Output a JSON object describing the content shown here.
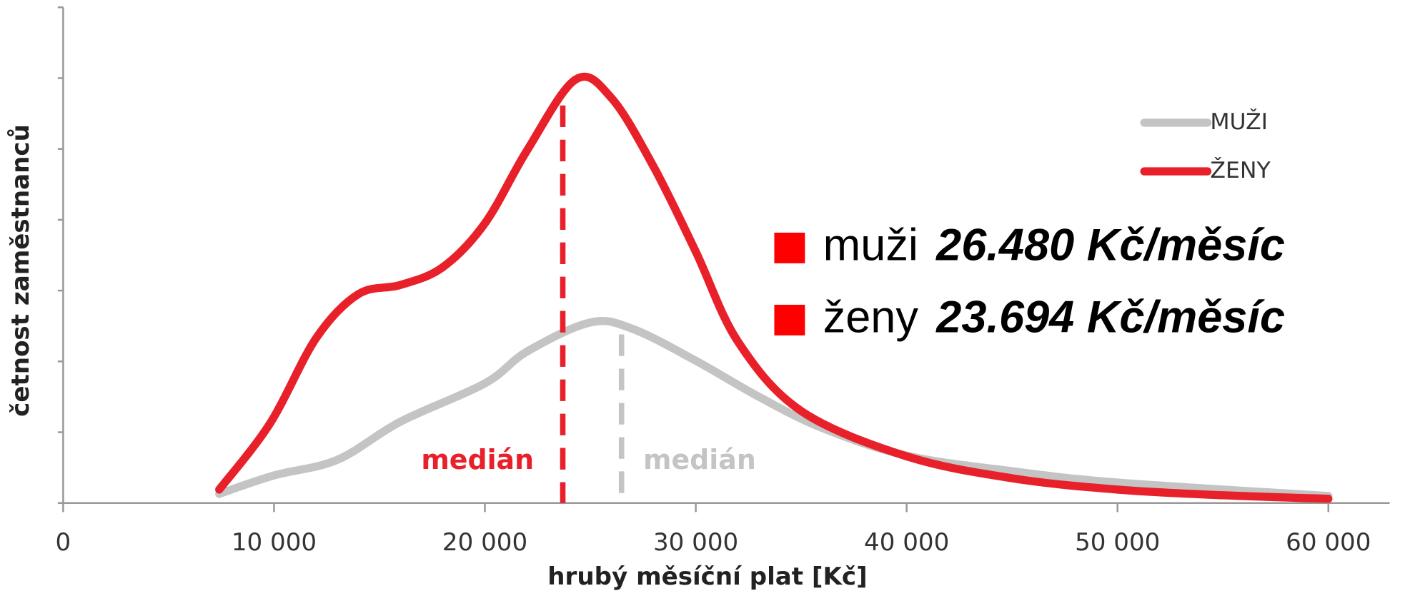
{
  "chart_data": {
    "type": "line",
    "x_label": "hrubý měsíční plat [Kč]",
    "y_label": "četnost zaměstnanců",
    "xlim": [
      0,
      60000
    ],
    "ylim": [
      0,
      7
    ],
    "xticks": [
      0,
      {
        "value": 10000,
        "label": "10 000"
      },
      {
        "value": 20000,
        "label": "20 000"
      },
      {
        "value": 30000,
        "label": "30 000"
      },
      {
        "value": 40000,
        "label": "40 000"
      },
      {
        "value": 50000,
        "label": "50 000"
      },
      {
        "value": 60000,
        "label": "60 000"
      }
    ],
    "yticks": [
      0,
      1,
      2,
      3,
      4,
      5,
      6,
      7
    ],
    "legend": "upper right",
    "series": [
      {
        "name": "MUŽI",
        "color": "#c4c4c4",
        "x": [
          7400,
          10000,
          13000,
          16000,
          20000,
          22000,
          25000,
          27000,
          30000,
          33000,
          36000,
          40000,
          45000,
          50000,
          60000
        ],
        "values": [
          0.13,
          0.39,
          0.61,
          1.15,
          1.69,
          2.14,
          2.55,
          2.46,
          2.01,
          1.5,
          1.06,
          0.67,
          0.45,
          0.29,
          0.1
        ]
      },
      {
        "name": "ŽENY",
        "color": "#e8202a",
        "x": [
          7400,
          9800,
          12000,
          14000,
          16000,
          18000,
          20000,
          22000,
          24300,
          26000,
          28000,
          30000,
          32000,
          35000,
          40000,
          45000,
          50000,
          55000,
          60000
        ],
        "values": [
          0.19,
          1.12,
          2.33,
          2.95,
          3.08,
          3.33,
          3.95,
          4.98,
          5.98,
          5.72,
          4.75,
          3.55,
          2.28,
          1.3,
          0.66,
          0.35,
          0.19,
          0.11,
          0.06
        ]
      }
    ],
    "medians": [
      {
        "name": "muži",
        "value": 26480,
        "label": "26.480 Kč/měsíc",
        "marker_label": "medián",
        "color": "#c4c4c4",
        "series": 0
      },
      {
        "name": "ženy",
        "value": 23694,
        "label": "23.694 Kč/měsíc",
        "marker_label": "medián",
        "color": "#e8202a",
        "series": 1
      }
    ],
    "box_color": "#ff0000"
  }
}
